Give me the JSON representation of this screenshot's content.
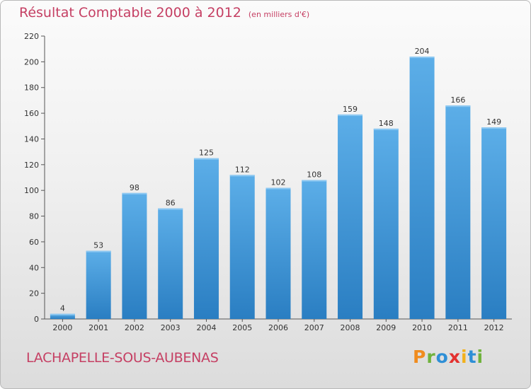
{
  "header": {
    "title": "Résultat Comptable 2000 à 2012",
    "subtitle": "(en milliers d'€)"
  },
  "footer": {
    "commune": "LACHAPELLE-SOUS-AUBENAS",
    "logo_letters": [
      "P",
      "r",
      "o",
      "x",
      "i",
      "t",
      "i"
    ],
    "logo_colors": [
      "#f08c1e",
      "#6fb23c",
      "#2e8fd6",
      "#e3312f",
      "#f2b11b",
      "#2e8fd6",
      "#6fb23c"
    ]
  },
  "colors": {
    "bar_top": "#5caee8",
    "bar_bottom": "#2a7ec2",
    "title": "#c53f63"
  },
  "chart_data": {
    "type": "bar",
    "categories": [
      "2000",
      "2001",
      "2002",
      "2003",
      "2004",
      "2005",
      "2006",
      "2007",
      "2008",
      "2009",
      "2010",
      "2011",
      "2012"
    ],
    "values": [
      4,
      53,
      98,
      86,
      125,
      112,
      102,
      108,
      159,
      148,
      204,
      166,
      149
    ],
    "title": "Résultat Comptable 2000 à 2012",
    "subtitle": "(en milliers d'€)",
    "ylim": [
      0,
      220
    ],
    "yticks": [
      0,
      20,
      40,
      60,
      80,
      100,
      120,
      140,
      160,
      180,
      200,
      220
    ],
    "grid": false
  }
}
